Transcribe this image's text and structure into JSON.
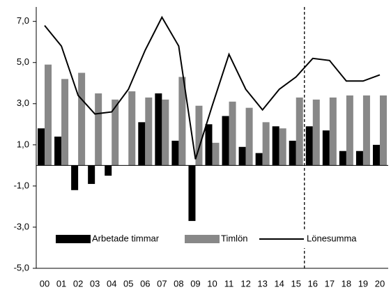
{
  "chart_data": {
    "type": "bar_line",
    "categories": [
      "00",
      "01",
      "02",
      "03",
      "04",
      "05",
      "06",
      "07",
      "08",
      "09",
      "10",
      "11",
      "12",
      "13",
      "14",
      "15",
      "16",
      "17",
      "18",
      "19",
      "20"
    ],
    "series": [
      {
        "name": "Arbetade timmar",
        "type": "bar",
        "color": "#000000",
        "values": [
          1.8,
          1.4,
          -1.2,
          -0.9,
          -0.5,
          0.0,
          2.1,
          3.5,
          1.2,
          -2.7,
          2.0,
          2.4,
          0.9,
          0.6,
          1.9,
          1.2,
          1.9,
          1.7,
          0.7,
          0.7,
          1.0
        ]
      },
      {
        "name": "Timlön",
        "type": "bar",
        "color": "#888888",
        "values": [
          4.9,
          4.2,
          4.5,
          3.5,
          3.2,
          3.6,
          3.3,
          3.2,
          4.3,
          2.9,
          1.1,
          3.1,
          2.8,
          2.1,
          1.8,
          3.3,
          3.2,
          3.3,
          3.4,
          3.4,
          3.4
        ]
      },
      {
        "name": "Lönesumma",
        "type": "line",
        "color": "#000000",
        "values": [
          6.8,
          5.8,
          3.4,
          2.5,
          2.6,
          3.7,
          5.6,
          7.2,
          5.8,
          0.3,
          2.9,
          5.4,
          3.7,
          2.7,
          3.7,
          4.3,
          5.2,
          5.1,
          4.1,
          4.1,
          4.4
        ]
      }
    ],
    "ylim": [
      -5,
      7.7
    ],
    "yticks": [
      {
        "value": -5,
        "label": "-5,0"
      },
      {
        "value": -3,
        "label": "-3,0"
      },
      {
        "value": -1,
        "label": "-1,0"
      },
      {
        "value": 1,
        "label": "1,0"
      },
      {
        "value": 3,
        "label": "3,0"
      },
      {
        "value": 5,
        "label": "5,0"
      },
      {
        "value": 7,
        "label": "7,0"
      }
    ],
    "divider": "16",
    "legend": "lower center"
  }
}
